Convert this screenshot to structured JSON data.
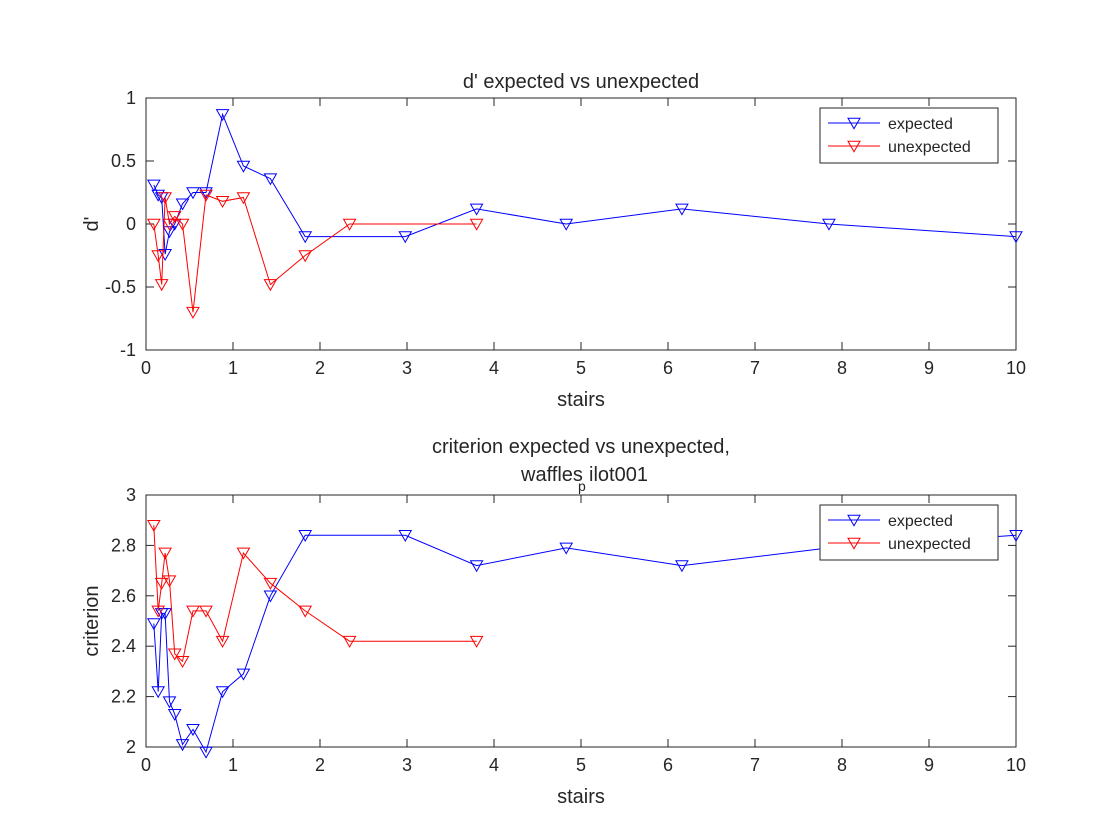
{
  "chart_data": [
    {
      "type": "line",
      "title": "d' expected vs unexpected",
      "title_lines": [
        "d' expected vs unexpected"
      ],
      "xlabel": "stairs",
      "ylabel": "d'",
      "xlim": [
        0,
        10
      ],
      "ylim": [
        -1,
        1
      ],
      "xticks": [
        "0",
        "1",
        "2",
        "3",
        "4",
        "5",
        "6",
        "7",
        "8",
        "9",
        "10"
      ],
      "yticks": [
        "-1",
        "-0.5",
        "0",
        "0.5",
        "1"
      ],
      "grid": false,
      "legend": "top-right",
      "series": [
        {
          "name": "expected",
          "color": "#0000ff",
          "marker": "down-triangle",
          "x": [
            0.09,
            0.14,
            0.18,
            0.22,
            0.27,
            0.33,
            0.42,
            0.54,
            0.69,
            0.88,
            1.12,
            1.43,
            1.83,
            2.98,
            3.8,
            4.83,
            6.16,
            7.85,
            10.0
          ],
          "y": [
            0.31,
            0.23,
            0.21,
            -0.24,
            -0.06,
            0.0,
            0.16,
            0.25,
            0.25,
            0.87,
            0.46,
            0.36,
            -0.1,
            -0.1,
            0.12,
            0.0,
            0.12,
            0.0,
            -0.1
          ]
        },
        {
          "name": "unexpected",
          "color": "#ff0000",
          "marker": "down-triangle",
          "x": [
            0.09,
            0.14,
            0.18,
            0.22,
            0.27,
            0.33,
            0.42,
            0.54,
            0.69,
            0.88,
            1.12,
            1.43,
            1.83,
            2.34,
            3.8
          ],
          "y": [
            0.0,
            -0.25,
            -0.48,
            0.21,
            0.0,
            0.06,
            0.0,
            -0.7,
            0.23,
            0.18,
            0.21,
            -0.48,
            -0.25,
            0.0,
            0.0
          ]
        }
      ]
    },
    {
      "type": "line",
      "title": "criterion expected vs unexpected, waffles_pilot001",
      "title_lines": [
        "criterion expected vs unexpected,",
        "waffles",
        "p",
        "ilot001"
      ],
      "xlabel": "stairs",
      "ylabel": "criterion",
      "xlim": [
        0,
        10
      ],
      "ylim": [
        2,
        3
      ],
      "xticks": [
        "0",
        "1",
        "2",
        "3",
        "4",
        "5",
        "6",
        "7",
        "8",
        "9",
        "10"
      ],
      "yticks": [
        "2",
        "2.2",
        "2.4",
        "2.6",
        "2.8",
        "3"
      ],
      "grid": false,
      "legend": "top-right",
      "series": [
        {
          "name": "expected",
          "color": "#0000ff",
          "marker": "down-triangle",
          "x": [
            0.09,
            0.14,
            0.18,
            0.22,
            0.27,
            0.33,
            0.42,
            0.54,
            0.69,
            0.88,
            1.12,
            1.43,
            1.83,
            2.98,
            3.8,
            4.83,
            6.16,
            7.85,
            10.0
          ],
          "y": [
            2.49,
            2.22,
            2.53,
            2.53,
            2.18,
            2.13,
            2.01,
            2.07,
            1.98,
            2.22,
            2.29,
            2.6,
            2.84,
            2.84,
            2.72,
            2.79,
            2.72,
            2.79,
            2.84
          ]
        },
        {
          "name": "unexpected",
          "color": "#ff0000",
          "marker": "down-triangle",
          "x": [
            0.09,
            0.14,
            0.18,
            0.22,
            0.27,
            0.33,
            0.42,
            0.54,
            0.69,
            0.88,
            1.12,
            1.43,
            1.83,
            2.34,
            3.8
          ],
          "y": [
            2.88,
            2.54,
            2.65,
            2.77,
            2.66,
            2.37,
            2.34,
            2.54,
            2.54,
            2.42,
            2.77,
            2.65,
            2.54,
            2.42,
            2.42
          ]
        }
      ]
    }
  ]
}
